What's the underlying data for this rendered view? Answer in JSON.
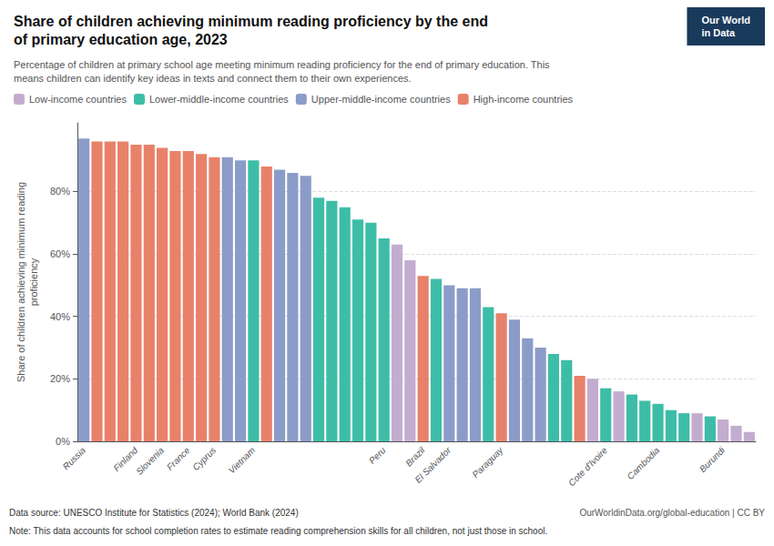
{
  "chart_data": {
    "type": "bar",
    "title": "Share of children achieving minimum reading proficiency by the end\nof primary education age, 2023",
    "subtitle": "Percentage of children at primary school age meeting minimum reading proficiency for the end of primary education. This\nmeans children can identify key ideas in texts and connect them to their own experiences.",
    "ylabel": "Share of children achieving minimum reading\nproficiency",
    "annotations": [
      "Data source: UNESCO Institute for Statistics (2024); World Bank (2024)",
      "OurWorldinData.org/global-education | CC BY",
      "Note: This data accounts for school completion rates to estimate reading comprehension skills for all children, not just those in school.",
      "Our World\nin Data"
    ],
    "categories": [
      "Russia",
      null,
      null,
      null,
      "Finland",
      null,
      "Slovenia",
      null,
      "France",
      null,
      "Cyprus",
      null,
      null,
      "Vietnam",
      null,
      null,
      null,
      null,
      null,
      null,
      null,
      null,
      null,
      "Peru",
      null,
      null,
      "Brazil",
      null,
      "El Salvador",
      null,
      null,
      null,
      "Paraguay",
      null,
      null,
      null,
      null,
      null,
      null,
      null,
      "Cote d'Ivoire",
      null,
      null,
      null,
      "Cambodia",
      null,
      null,
      null,
      null,
      "Burundi",
      null,
      null
    ],
    "series": [
      {
        "name": "Low-income countries",
        "color": "#c3acd0",
        "values": [
          null,
          null,
          null,
          null,
          null,
          null,
          null,
          null,
          null,
          null,
          null,
          null,
          null,
          null,
          null,
          null,
          null,
          null,
          null,
          null,
          null,
          null,
          null,
          null,
          63,
          58,
          null,
          null,
          null,
          null,
          null,
          null,
          null,
          null,
          null,
          null,
          null,
          null,
          null,
          20,
          null,
          16,
          null,
          null,
          null,
          null,
          null,
          9,
          null,
          7,
          5,
          3
        ]
      },
      {
        "name": "Lower-middle-income countries",
        "color": "#3dbda7",
        "values": [
          null,
          null,
          null,
          null,
          null,
          null,
          null,
          null,
          null,
          null,
          null,
          null,
          null,
          90,
          null,
          null,
          null,
          null,
          78,
          77,
          75,
          71,
          70,
          65,
          null,
          null,
          null,
          52,
          null,
          null,
          null,
          43,
          null,
          null,
          null,
          null,
          28,
          26,
          null,
          null,
          17,
          null,
          15,
          13,
          12,
          10,
          9,
          null,
          8,
          null,
          null,
          null
        ]
      },
      {
        "name": "Upper-middle-income countries",
        "color": "#8b9cc8",
        "values": [
          97,
          null,
          null,
          null,
          null,
          null,
          null,
          null,
          null,
          null,
          null,
          91,
          90,
          null,
          null,
          87,
          86,
          85,
          null,
          null,
          null,
          null,
          null,
          null,
          null,
          null,
          null,
          null,
          50,
          49,
          49,
          null,
          null,
          39,
          33,
          30,
          null,
          null,
          null,
          null,
          null,
          null,
          null,
          null,
          null,
          null,
          null,
          null,
          null,
          null,
          null,
          null
        ]
      },
      {
        "name": "High-income countries",
        "color": "#e8816a",
        "values": [
          null,
          96,
          96,
          96,
          95,
          95,
          94,
          93,
          93,
          92,
          91,
          null,
          null,
          null,
          88,
          null,
          null,
          null,
          null,
          null,
          null,
          null,
          null,
          null,
          null,
          null,
          53,
          null,
          null,
          null,
          null,
          null,
          41,
          null,
          null,
          null,
          null,
          null,
          21,
          null,
          null,
          null,
          null,
          null,
          null,
          null,
          null,
          null,
          null,
          null,
          null,
          null
        ]
      }
    ],
    "ylim": [
      0,
      102
    ],
    "yticks": [
      {
        "value": 0,
        "label": "0%"
      },
      {
        "value": 20,
        "label": "20%"
      },
      {
        "value": 40,
        "label": "40%"
      },
      {
        "value": 60,
        "label": "60%"
      },
      {
        "value": 80,
        "label": "80%"
      }
    ],
    "grid": true,
    "legend": "top"
  }
}
